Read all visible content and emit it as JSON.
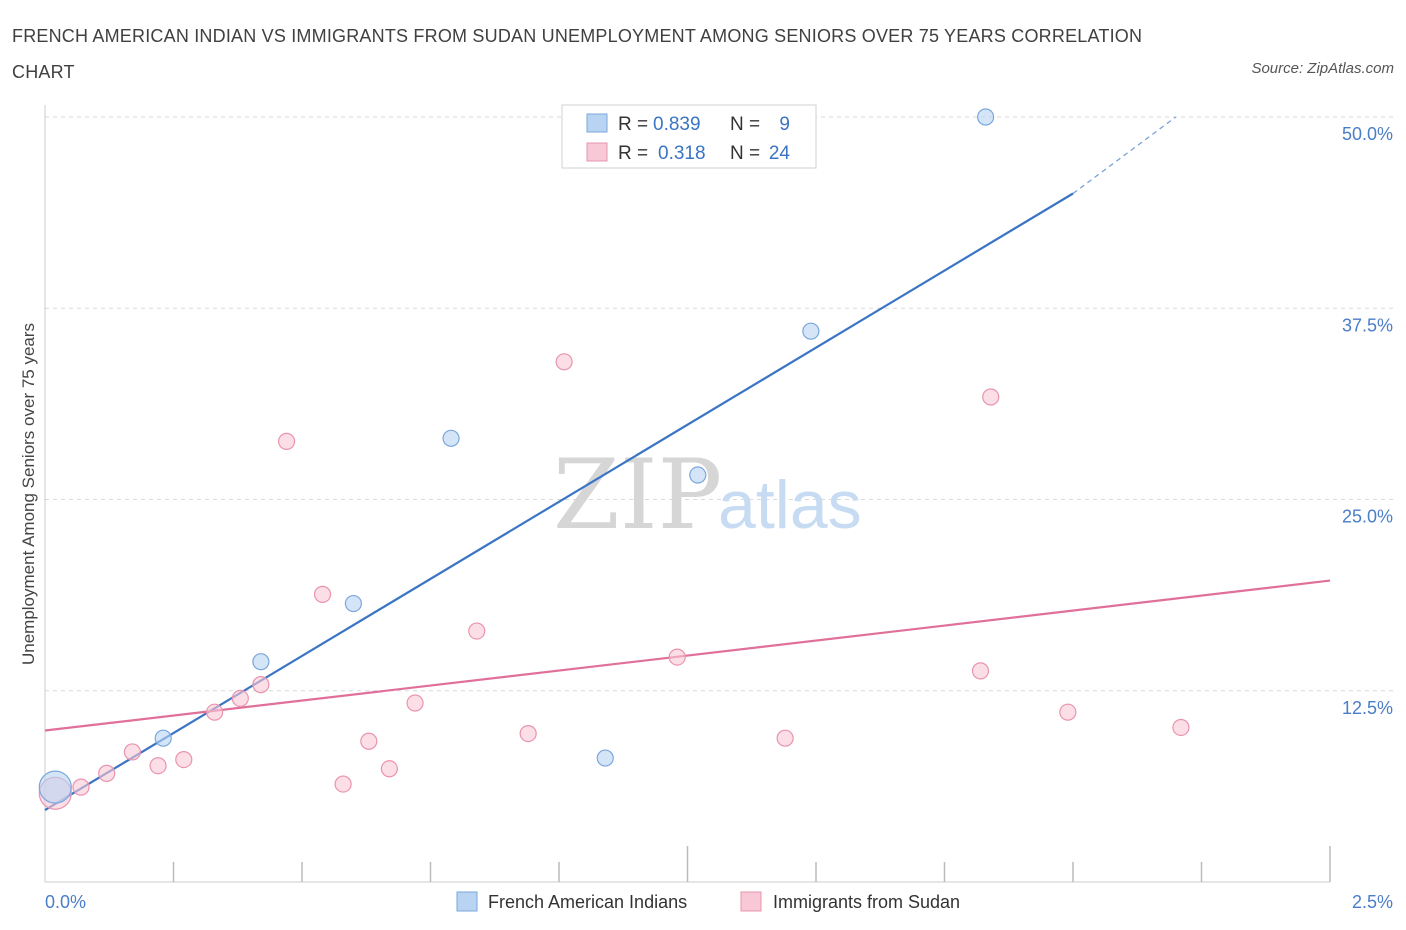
{
  "title": "FRENCH AMERICAN INDIAN VS IMMIGRANTS FROM SUDAN UNEMPLOYMENT AMONG SENIORS OVER 75 YEARS CORRELATION CHART",
  "source": "Source: ZipAtlas.com",
  "watermark": {
    "zip": "ZIP",
    "atlas": "atlas"
  },
  "colors": {
    "blue_fill": "#b9d3f3",
    "blue_stroke": "#7aa7dc",
    "blue_line": "#3a74c4",
    "pink_fill": "#f8c8d6",
    "pink_stroke": "#e994ae",
    "pink_line": "#e0709a",
    "grid": "#d9d9d9",
    "axis_label": "#4a7ec8"
  },
  "legend": {
    "rows": [
      {
        "r_label": "R = ",
        "r_value": "0.839",
        "n_label": "N = ",
        "n_value": "9"
      },
      {
        "r_label": "R = ",
        "r_value": "0.318",
        "n_label": "N = ",
        "n_value": "24"
      }
    ]
  },
  "chart_data": {
    "type": "scatter",
    "xlabel": "",
    "ylabel": "Unemployment Among Seniors over 75 years",
    "xlim": [
      0,
      2.5
    ],
    "ylim": [
      0,
      50
    ],
    "x_tick_labels": [
      "0.0%",
      "2.5%"
    ],
    "y_ticks": [
      12.5,
      25.0,
      37.5,
      50.0
    ],
    "y_tick_labels": [
      "12.5%",
      "25.0%",
      "37.5%",
      "50.0%"
    ],
    "grid": true,
    "legend_position": "top-center",
    "series": [
      {
        "name": "French American Indians",
        "color": "#b9d3f3",
        "points": [
          {
            "x": 0.02,
            "y": 6.2,
            "size": "large"
          },
          {
            "x": 0.23,
            "y": 9.4
          },
          {
            "x": 0.42,
            "y": 14.4
          },
          {
            "x": 0.6,
            "y": 18.2
          },
          {
            "x": 0.79,
            "y": 29.0
          },
          {
            "x": 1.09,
            "y": 8.1
          },
          {
            "x": 1.27,
            "y": 26.6
          },
          {
            "x": 1.49,
            "y": 36.0
          },
          {
            "x": 1.83,
            "y": 50.0
          }
        ],
        "trend": {
          "x0": 0.0,
          "y0": 4.7,
          "x1": 2.0,
          "y1": 45.0,
          "dashed_to_x": 2.2,
          "dashed_to_y": 50.0
        }
      },
      {
        "name": "Immigrants from Sudan",
        "color": "#f8c8d6",
        "points": [
          {
            "x": 0.02,
            "y": 5.8,
            "size": "large"
          },
          {
            "x": 0.07,
            "y": 6.2
          },
          {
            "x": 0.12,
            "y": 7.1
          },
          {
            "x": 0.17,
            "y": 8.5
          },
          {
            "x": 0.22,
            "y": 7.6
          },
          {
            "x": 0.27,
            "y": 8.0
          },
          {
            "x": 0.33,
            "y": 11.1
          },
          {
            "x": 0.38,
            "y": 12.0
          },
          {
            "x": 0.42,
            "y": 12.9
          },
          {
            "x": 0.47,
            "y": 28.8
          },
          {
            "x": 0.54,
            "y": 18.8
          },
          {
            "x": 0.58,
            "y": 6.4
          },
          {
            "x": 0.63,
            "y": 9.2
          },
          {
            "x": 0.67,
            "y": 7.4
          },
          {
            "x": 0.72,
            "y": 11.7
          },
          {
            "x": 0.84,
            "y": 16.4
          },
          {
            "x": 0.94,
            "y": 9.7
          },
          {
            "x": 1.01,
            "y": 34.0
          },
          {
            "x": 1.23,
            "y": 14.7
          },
          {
            "x": 1.44,
            "y": 9.4
          },
          {
            "x": 1.82,
            "y": 13.8
          },
          {
            "x": 1.84,
            "y": 31.7
          },
          {
            "x": 1.99,
            "y": 11.1
          },
          {
            "x": 2.21,
            "y": 10.1
          }
        ],
        "trend": {
          "x0": 0.0,
          "y0": 9.9,
          "x1": 2.5,
          "y1": 19.7
        }
      }
    ]
  }
}
